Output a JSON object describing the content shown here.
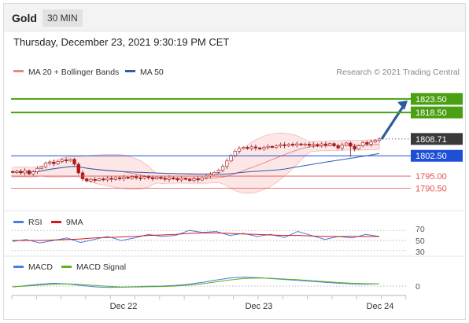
{
  "header": {
    "symbol": "Gold",
    "interval": "30 MIN"
  },
  "datetime": "Thursday, December 23, 2021 9:30:19 PM CET",
  "legend": {
    "ma_bb": "MA 20 + Bollinger Bands",
    "ma50": "MA 50",
    "credit": "Research © 2021 Trading Central"
  },
  "colors": {
    "candle": "#b0181b",
    "bollinger": "#f7b6b6",
    "ma20": "#e58a8a",
    "ma50": "#2f5db0",
    "resistance": "#4aa012",
    "support": "#1f4fd6",
    "level_red": "#e05050",
    "arrow": "#2c5b9e",
    "rsi": "#4c7de0",
    "rsi_ma": "#d21c1c",
    "macd": "#4c7de0",
    "macd_signal": "#5fb01a"
  },
  "chart_data": [
    {
      "type": "candlestick",
      "title": "",
      "x_labels": [
        "Dec 22",
        "Dec 23",
        "Dec 24"
      ],
      "ylim": [
        1784,
        1831
      ],
      "close": [
        1796.4,
        1796.8,
        1796.2,
        1797.0,
        1795.8,
        1796.6,
        1797.8,
        1798.4,
        1799.8,
        1800.2,
        1799.6,
        1800.4,
        1801.0,
        1800.6,
        1801.2,
        1799.4,
        1796.2,
        1794.0,
        1793.2,
        1793.8,
        1793.4,
        1794.0,
        1793.6,
        1794.2,
        1793.8,
        1794.4,
        1794.0,
        1794.6,
        1794.2,
        1794.8,
        1794.4,
        1794.2,
        1794.8,
        1794.4,
        1794.0,
        1794.6,
        1794.2,
        1793.8,
        1794.4,
        1794.0,
        1793.6,
        1794.2,
        1793.8,
        1793.4,
        1794.0,
        1793.6,
        1794.4,
        1795.0,
        1795.6,
        1796.4,
        1797.2,
        1798.6,
        1800.6,
        1802.6,
        1804.2,
        1805.2,
        1805.6,
        1805.2,
        1805.8,
        1805.4,
        1805.0,
        1805.6,
        1806.0,
        1805.6,
        1806.2,
        1806.6,
        1806.2,
        1806.8,
        1806.4,
        1806.9,
        1806.5,
        1806.8,
        1806.3,
        1806.7,
        1806.2,
        1806.9,
        1806.4,
        1807.0,
        1806.2,
        1805.4,
        1806.4,
        1807.2,
        1806.0,
        1805.0,
        1806.2,
        1807.4,
        1806.8,
        1807.6,
        1808.2,
        1808.71
      ],
      "levels": [
        {
          "value": 1823.5,
          "label": "1823.50",
          "kind": "resistance"
        },
        {
          "value": 1818.5,
          "label": "1818.50",
          "kind": "resistance"
        },
        {
          "value": 1808.71,
          "label": "1808.71",
          "kind": "last"
        },
        {
          "value": 1802.5,
          "label": "1802.50",
          "kind": "pivot"
        },
        {
          "value": 1795.0,
          "label": "1795.00",
          "kind": "support"
        },
        {
          "value": 1790.5,
          "label": "1790.50",
          "kind": "support"
        }
      ]
    },
    {
      "type": "line",
      "title": "RSI",
      "series": [
        {
          "name": "RSI",
          "values": [
            48,
            52,
            45,
            50,
            55,
            46,
            52,
            58,
            50,
            55,
            62,
            58,
            60,
            70,
            66,
            68,
            60,
            64,
            58,
            62,
            56,
            68,
            60,
            52,
            58,
            55,
            62,
            58
          ]
        },
        {
          "name": "9MA",
          "values": [
            50,
            50,
            50,
            51,
            52,
            53,
            55,
            56,
            57,
            58,
            60,
            61,
            62,
            64,
            65,
            65,
            64,
            63,
            62,
            61,
            60,
            60,
            59,
            58,
            58,
            58,
            58,
            58
          ]
        }
      ],
      "y_ticks": [
        "70",
        "50",
        "30"
      ],
      "ylim": [
        25,
        75
      ]
    },
    {
      "type": "line",
      "title": "MACD",
      "series": [
        {
          "name": "MACD",
          "values": [
            -0.4,
            0.2,
            0.8,
            1.2,
            0.9,
            0.3,
            -0.3,
            -0.6,
            -0.5,
            -0.3,
            -0.1,
            0.0,
            0.3,
            0.8,
            1.6,
            2.6,
            3.4,
            3.8,
            3.6,
            3.2,
            2.8,
            2.4,
            2.0,
            1.6,
            1.2,
            0.9,
            0.8,
            1.0
          ]
        },
        {
          "name": "MACD Signal",
          "values": [
            -0.3,
            0.0,
            0.4,
            0.8,
            0.9,
            0.7,
            0.3,
            -0.1,
            -0.4,
            -0.4,
            -0.3,
            -0.2,
            0.0,
            0.4,
            1.0,
            1.8,
            2.6,
            3.2,
            3.4,
            3.3,
            3.0,
            2.7,
            2.3,
            1.9,
            1.5,
            1.2,
            1.0,
            1.0
          ]
        }
      ],
      "y_ticks": [
        "0"
      ],
      "ylim": [
        -4,
        6
      ]
    }
  ]
}
